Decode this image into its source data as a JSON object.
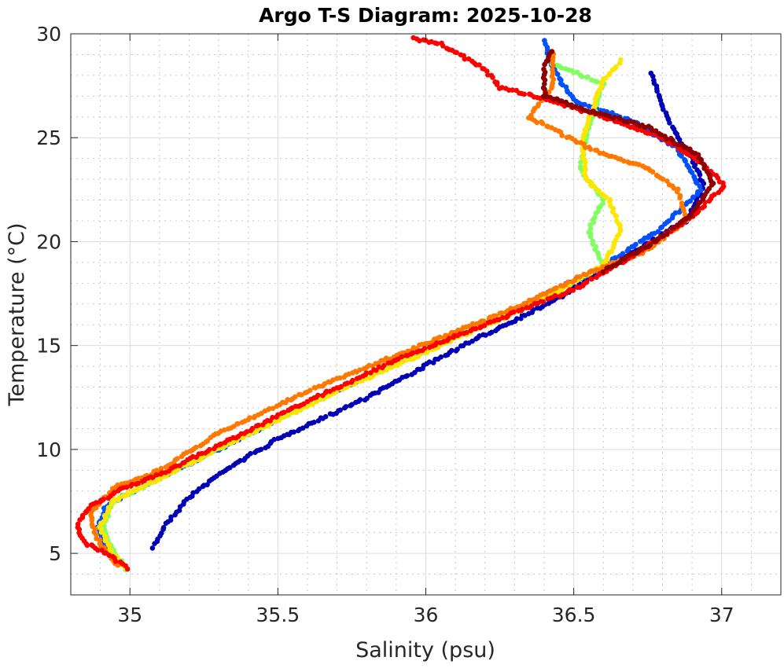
{
  "chart_data": {
    "type": "scatter",
    "title": "Argo T-S Diagram: 2025-10-28",
    "xlabel": "Salinity (psu)",
    "ylabel": "Temperature (°C)",
    "xlim": [
      34.8,
      37.2
    ],
    "ylim": [
      3,
      30
    ],
    "xticks": [
      35,
      35.5,
      36,
      36.5,
      37
    ],
    "xtick_labels": [
      "35",
      "35.5",
      "36",
      "36.5",
      "37"
    ],
    "yticks": [
      5,
      10,
      15,
      20,
      25,
      30
    ],
    "ytick_labels": [
      "5",
      "10",
      "15",
      "20",
      "25",
      "30"
    ],
    "grid": true,
    "minor_grid": true,
    "series": [
      {
        "name": "profile-dark-blue",
        "color": "#0000b4",
        "points": [
          [
            35.08,
            5.3
          ],
          [
            35.12,
            6.4
          ],
          [
            35.2,
            7.7
          ],
          [
            35.32,
            9
          ],
          [
            35.5,
            10.5
          ],
          [
            35.8,
            12.5
          ],
          [
            36.1,
            14.8
          ],
          [
            36.45,
            17.3
          ],
          [
            36.7,
            19.5
          ],
          [
            36.88,
            21
          ],
          [
            36.94,
            22.6
          ],
          [
            36.9,
            24
          ],
          [
            36.85,
            25
          ],
          [
            36.8,
            26.5
          ],
          [
            36.76,
            28.2
          ]
        ]
      },
      {
        "name": "profile-blue",
        "color": "#0050ff",
        "points": [
          [
            34.97,
            4.5
          ],
          [
            34.92,
            5.3
          ],
          [
            34.89,
            6.3
          ],
          [
            34.92,
            7.3
          ],
          [
            35.05,
            8.3
          ],
          [
            35.3,
            10
          ],
          [
            35.6,
            12.2
          ],
          [
            35.95,
            14.5
          ],
          [
            36.3,
            16.7
          ],
          [
            36.6,
            18.8
          ],
          [
            36.8,
            20.7
          ],
          [
            36.93,
            22.5
          ],
          [
            36.85,
            24.5
          ],
          [
            36.7,
            25.8
          ],
          [
            36.5,
            26.8
          ],
          [
            36.42,
            28.5
          ],
          [
            36.4,
            29.8
          ]
        ]
      },
      {
        "name": "profile-light-green",
        "color": "#80ff60",
        "points": [
          [
            34.99,
            4.2
          ],
          [
            34.95,
            5
          ],
          [
            34.91,
            6.2
          ],
          [
            34.94,
            7.5
          ],
          [
            35.1,
            8.6
          ],
          [
            35.35,
            10.4
          ],
          [
            35.65,
            12.5
          ],
          [
            36.0,
            14.8
          ],
          [
            36.35,
            17
          ],
          [
            36.6,
            18.8
          ],
          [
            36.55,
            20.5
          ],
          [
            36.6,
            22
          ],
          [
            36.52,
            23.5
          ],
          [
            36.55,
            25.5
          ],
          [
            36.6,
            27.6
          ],
          [
            36.42,
            28.6
          ]
        ]
      },
      {
        "name": "profile-yellow",
        "color": "#ffe600",
        "points": [
          [
            34.98,
            4.3
          ],
          [
            34.93,
            5.2
          ],
          [
            34.9,
            6.3
          ],
          [
            34.94,
            7.5
          ],
          [
            35.1,
            8.6
          ],
          [
            35.35,
            10.4
          ],
          [
            35.7,
            12.8
          ],
          [
            36.05,
            15
          ],
          [
            36.4,
            17.2
          ],
          [
            36.6,
            18.9
          ],
          [
            36.66,
            20.5
          ],
          [
            36.62,
            22
          ],
          [
            36.54,
            23
          ],
          [
            36.53,
            25
          ],
          [
            36.6,
            27.8
          ],
          [
            36.67,
            28.8
          ]
        ]
      },
      {
        "name": "profile-orange",
        "color": "#ff7800",
        "points": [
          [
            34.96,
            4.4
          ],
          [
            34.92,
            5
          ],
          [
            34.88,
            6
          ],
          [
            34.87,
            7
          ],
          [
            34.95,
            8.2
          ],
          [
            35.1,
            9
          ],
          [
            35.3,
            10.8
          ],
          [
            35.6,
            12.8
          ],
          [
            35.95,
            14.8
          ],
          [
            36.3,
            16.8
          ],
          [
            36.55,
            18.5
          ],
          [
            36.75,
            19.6
          ],
          [
            36.88,
            21
          ],
          [
            36.85,
            22.5
          ],
          [
            36.75,
            23.5
          ],
          [
            36.55,
            24.5
          ],
          [
            36.35,
            26
          ],
          [
            36.43,
            27.5
          ],
          [
            36.43,
            29.2
          ]
        ]
      },
      {
        "name": "profile-red",
        "color": "#ff0000",
        "points": [
          [
            34.99,
            4.3
          ],
          [
            34.93,
            4.9
          ],
          [
            34.85,
            5.5
          ],
          [
            34.82,
            6.3
          ],
          [
            34.86,
            7.2
          ],
          [
            34.96,
            8
          ],
          [
            35.1,
            8.8
          ],
          [
            35.3,
            10.2
          ],
          [
            35.6,
            12.3
          ],
          [
            35.9,
            14.3
          ],
          [
            36.2,
            16
          ],
          [
            36.5,
            17.7
          ],
          [
            36.72,
            19.5
          ],
          [
            36.9,
            21.2
          ],
          [
            37.01,
            22.7
          ],
          [
            36.93,
            23.8
          ],
          [
            36.8,
            25
          ],
          [
            36.6,
            26
          ],
          [
            36.4,
            26.9
          ],
          [
            36.25,
            27.4
          ],
          [
            36.2,
            28.3
          ],
          [
            36.05,
            29.5
          ],
          [
            35.95,
            29.8
          ]
        ]
      },
      {
        "name": "profile-dark-red",
        "color": "#8c0000",
        "points": [
          [
            36.6,
            18.6
          ],
          [
            36.75,
            19.8
          ],
          [
            36.9,
            21.3
          ],
          [
            36.97,
            22.8
          ],
          [
            36.92,
            24.2
          ],
          [
            36.75,
            25.5
          ],
          [
            36.55,
            26.3
          ],
          [
            36.4,
            27
          ],
          [
            36.4,
            28.5
          ],
          [
            36.43,
            29.3
          ]
        ]
      }
    ]
  }
}
